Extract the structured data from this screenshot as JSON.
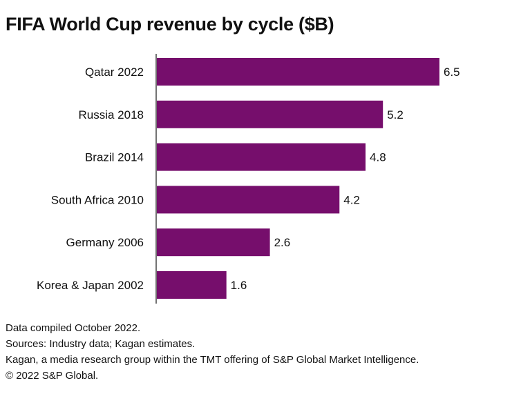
{
  "chart_data": {
    "type": "bar",
    "orientation": "horizontal",
    "title": "FIFA World Cup revenue by cycle ($B)",
    "categories": [
      "Qatar 2022",
      "Russia 2018",
      "Brazil 2014",
      "South Africa 2010",
      "Germany 2006",
      "Korea & Japan 2002"
    ],
    "values": [
      6.5,
      5.2,
      4.8,
      4.2,
      2.6,
      1.6
    ],
    "value_labels": [
      "6.5",
      "5.2",
      "4.8",
      "4.2",
      "2.6",
      "1.6"
    ],
    "xlabel": "",
    "ylabel": "",
    "xlim": [
      0,
      6.5
    ],
    "grid": false,
    "bar_color": "#760e6c"
  },
  "footer": [
    "Data compiled October 2022.",
    "Sources: Industry data; Kagan estimates.",
    "Kagan, a media research group within the TMT offering of S&P Global Market Intelligence.",
    "© 2022 S&P Global."
  ]
}
